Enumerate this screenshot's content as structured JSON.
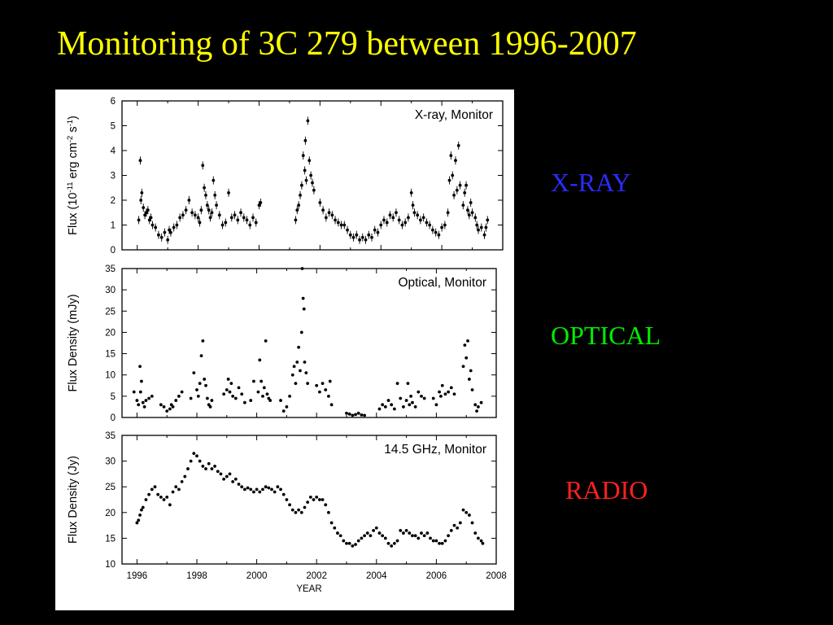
{
  "slide": {
    "title": "Monitoring of 3C 279 between 1996-2007",
    "labels": {
      "xray": {
        "text": "X-RAY",
        "color": "#2b2bff"
      },
      "optical": {
        "text": "OPTICAL",
        "color": "#00ee00"
      },
      "radio": {
        "text": "RADIO",
        "color": "#ff2020"
      }
    }
  },
  "chart_data": [
    {
      "type": "scatter",
      "title": "X-ray, Monitor",
      "ylabel": "Flux (10^-11 erg cm^-2 s^-1)",
      "xlabel": "",
      "xlim": [
        1995.5,
        2008
      ],
      "ylim": [
        0,
        6
      ],
      "yticks": [
        0,
        1,
        2,
        3,
        4,
        5,
        6
      ],
      "error_bars": true,
      "series": [
        {
          "x": [
            1996.05,
            1996.1,
            1996.12,
            1996.15,
            1996.2,
            1996.25,
            1996.3,
            1996.35,
            1996.4,
            1996.45,
            1996.5,
            1996.6,
            1996.7,
            1996.8,
            1996.9,
            1997.0,
            1997.05,
            1997.1,
            1997.2,
            1997.3,
            1997.4,
            1997.5,
            1997.6,
            1997.7,
            1997.8,
            1997.9,
            1998.0,
            1998.05,
            1998.1,
            1998.15,
            1998.2,
            1998.25,
            1998.3,
            1998.35,
            1998.4,
            1998.45,
            1998.5,
            1998.55,
            1998.6,
            1998.7,
            1998.8,
            1998.9,
            1999.0,
            1999.1,
            1999.2,
            1999.3,
            1999.4,
            1999.5,
            1999.6,
            1999.7,
            1999.8,
            1999.9,
            2000.0,
            2000.05,
            2001.2,
            2001.25,
            2001.3,
            2001.35,
            2001.4,
            2001.45,
            2001.5,
            2001.52,
            2001.55,
            2001.6,
            2001.65,
            2001.7,
            2001.75,
            2001.8,
            2002.0,
            2002.1,
            2002.2,
            2002.3,
            2002.4,
            2002.5,
            2002.6,
            2002.7,
            2002.8,
            2002.9,
            2003.0,
            2003.1,
            2003.2,
            2003.3,
            2003.4,
            2003.5,
            2003.6,
            2003.7,
            2003.8,
            2003.9,
            2004.0,
            2004.1,
            2004.2,
            2004.3,
            2004.4,
            2004.5,
            2004.6,
            2004.7,
            2004.8,
            2004.9,
            2005.0,
            2005.05,
            2005.1,
            2005.2,
            2005.3,
            2005.4,
            2005.5,
            2005.6,
            2005.7,
            2005.8,
            2005.9,
            2006.0,
            2006.1,
            2006.2,
            2006.25,
            2006.3,
            2006.35,
            2006.4,
            2006.45,
            2006.5,
            2006.55,
            2006.6,
            2006.7,
            2006.75,
            2006.8,
            2006.85,
            2006.9,
            2006.95,
            2007.0,
            2007.1,
            2007.15,
            2007.2,
            2007.3,
            2007.4,
            2007.45,
            2007.5
          ],
          "y": [
            1.2,
            3.6,
            2.0,
            2.3,
            1.7,
            1.4,
            1.5,
            1.6,
            1.2,
            1.3,
            1.0,
            0.9,
            0.6,
            0.5,
            0.7,
            0.4,
            0.8,
            0.7,
            0.9,
            1.0,
            1.3,
            1.4,
            1.6,
            2.0,
            1.5,
            1.4,
            1.3,
            1.1,
            1.6,
            3.4,
            2.5,
            2.2,
            1.8,
            1.6,
            1.3,
            1.5,
            2.8,
            2.2,
            1.8,
            1.4,
            1.0,
            1.1,
            2.3,
            1.3,
            1.4,
            1.2,
            1.5,
            1.3,
            1.2,
            1.0,
            1.3,
            1.1,
            1.8,
            1.9,
            1.2,
            1.6,
            1.8,
            2.2,
            2.6,
            3.8,
            3.2,
            4.4,
            2.8,
            5.2,
            3.6,
            3.0,
            2.7,
            2.4,
            1.9,
            1.6,
            1.3,
            1.5,
            1.4,
            1.2,
            1.1,
            1.0,
            1.0,
            0.8,
            0.6,
            0.5,
            0.6,
            0.4,
            0.5,
            0.4,
            0.6,
            0.5,
            0.8,
            0.7,
            1.0,
            1.2,
            1.1,
            1.4,
            1.3,
            1.5,
            1.2,
            1.0,
            1.1,
            1.3,
            2.3,
            1.8,
            1.5,
            1.4,
            1.2,
            1.3,
            1.1,
            1.0,
            0.8,
            0.7,
            0.6,
            0.9,
            1.0,
            1.5,
            2.8,
            3.8,
            3.0,
            2.2,
            3.6,
            2.4,
            4.2,
            2.6,
            1.8,
            2.3,
            2.6,
            1.6,
            1.4,
            1.9,
            1.5,
            1.3,
            1.0,
            0.8,
            0.9,
            0.6,
            0.9,
            1.2
          ]
        }
      ]
    },
    {
      "type": "scatter",
      "title": "Optical, Monitor",
      "ylabel": "Flux Density (mJy)",
      "xlabel": "",
      "xlim": [
        1995.5,
        2008
      ],
      "ylim": [
        0,
        35
      ],
      "yticks": [
        0,
        5,
        10,
        15,
        20,
        25,
        30,
        35
      ],
      "series": [
        {
          "x": [
            1995.9,
            1996.0,
            1996.05,
            1996.1,
            1996.12,
            1996.15,
            1996.2,
            1996.25,
            1996.3,
            1996.4,
            1996.5,
            1996.8,
            1996.9,
            1997.0,
            1997.1,
            1997.15,
            1997.2,
            1997.3,
            1997.4,
            1997.5,
            1997.8,
            1997.9,
            1998.0,
            1998.05,
            1998.1,
            1998.15,
            1998.2,
            1998.25,
            1998.3,
            1998.35,
            1998.4,
            1998.45,
            1998.5,
            1998.9,
            1999.0,
            1999.05,
            1999.1,
            1999.15,
            1999.2,
            1999.3,
            1999.4,
            1999.5,
            1999.6,
            1999.8,
            1999.9,
            2000.05,
            2000.1,
            2000.15,
            2000.2,
            2000.25,
            2000.3,
            2000.35,
            2000.4,
            2000.45,
            2000.8,
            2000.9,
            2001.0,
            2001.1,
            2001.2,
            2001.25,
            2001.3,
            2001.35,
            2001.4,
            2001.45,
            2001.5,
            2001.52,
            2001.55,
            2001.58,
            2001.6,
            2001.65,
            2001.7,
            2002.0,
            2002.1,
            2002.2,
            2002.3,
            2002.4,
            2002.45,
            2002.5,
            2003.0,
            2003.1,
            2003.2,
            2003.3,
            2003.4,
            2003.5,
            2003.6,
            2004.1,
            2004.2,
            2004.3,
            2004.4,
            2004.5,
            2004.6,
            2004.7,
            2004.8,
            2004.9,
            2005.0,
            2005.05,
            2005.1,
            2005.15,
            2005.2,
            2005.3,
            2005.4,
            2005.5,
            2005.6,
            2005.9,
            2006.0,
            2006.1,
            2006.15,
            2006.2,
            2006.3,
            2006.4,
            2006.5,
            2006.6,
            2006.9,
            2006.95,
            2007.0,
            2007.05,
            2007.1,
            2007.15,
            2007.2,
            2007.3,
            2007.35,
            2007.4,
            2007.5
          ],
          "y": [
            6.0,
            4.0,
            3.0,
            12.0,
            6.0,
            8.5,
            3.5,
            2.5,
            4.0,
            4.5,
            5.0,
            3.0,
            2.5,
            1.5,
            2.0,
            3.0,
            2.5,
            4.0,
            5.0,
            6.0,
            4.5,
            10.5,
            6.5,
            5.0,
            8.0,
            14.5,
            18.0,
            9.0,
            7.5,
            4.5,
            3.0,
            2.5,
            4.0,
            5.5,
            6.5,
            9.0,
            6.0,
            8.0,
            5.0,
            4.5,
            7.0,
            5.5,
            3.5,
            4.0,
            8.5,
            6.0,
            13.5,
            8.5,
            5.0,
            7.0,
            18.0,
            5.5,
            4.5,
            4.0,
            4.0,
            1.5,
            2.5,
            5.0,
            10.0,
            12.0,
            8.0,
            13.0,
            16.5,
            11.0,
            20.0,
            35.0,
            28.0,
            25.5,
            13.0,
            10.5,
            8.0,
            7.5,
            6.0,
            8.0,
            6.5,
            5.0,
            8.5,
            3.0,
            1.0,
            0.8,
            0.5,
            0.7,
            1.0,
            0.6,
            0.5,
            2.0,
            3.0,
            2.5,
            4.0,
            3.0,
            2.0,
            8.0,
            4.5,
            2.5,
            4.0,
            8.0,
            3.0,
            5.0,
            3.5,
            2.5,
            6.0,
            5.0,
            4.5,
            4.5,
            3.0,
            6.0,
            5.0,
            7.5,
            5.5,
            6.0,
            7.0,
            5.5,
            12.0,
            17.0,
            14.0,
            18.0,
            9.0,
            11.0,
            6.5,
            3.0,
            1.5,
            2.5,
            3.5
          ]
        }
      ]
    },
    {
      "type": "scatter",
      "title": "14.5 GHz, Monitor",
      "ylabel": "Flux Density (Jy)",
      "xlabel": "YEAR",
      "xlim": [
        1995.5,
        2008
      ],
      "ylim": [
        10,
        35
      ],
      "yticks": [
        10,
        15,
        20,
        25,
        30,
        35
      ],
      "xticks": [
        1996,
        1998,
        2000,
        2002,
        2004,
        2006,
        2008
      ],
      "series": [
        {
          "x": [
            1996.0,
            1996.05,
            1996.1,
            1996.15,
            1996.2,
            1996.3,
            1996.4,
            1996.5,
            1996.6,
            1996.7,
            1996.8,
            1996.9,
            1997.0,
            1997.1,
            1997.2,
            1997.3,
            1997.4,
            1997.5,
            1997.6,
            1997.7,
            1997.8,
            1997.9,
            1998.0,
            1998.1,
            1998.2,
            1998.3,
            1998.4,
            1998.5,
            1998.6,
            1998.7,
            1998.8,
            1998.9,
            1999.0,
            1999.1,
            1999.2,
            1999.3,
            1999.4,
            1999.5,
            1999.6,
            1999.7,
            1999.8,
            1999.9,
            2000.0,
            2000.1,
            2000.2,
            2000.3,
            2000.4,
            2000.5,
            2000.6,
            2000.7,
            2000.8,
            2000.9,
            2001.0,
            2001.1,
            2001.2,
            2001.3,
            2001.4,
            2001.5,
            2001.6,
            2001.7,
            2001.8,
            2001.9,
            2002.0,
            2002.1,
            2002.2,
            2002.3,
            2002.4,
            2002.5,
            2002.6,
            2002.7,
            2002.8,
            2002.9,
            2003.0,
            2003.1,
            2003.2,
            2003.3,
            2003.4,
            2003.5,
            2003.6,
            2003.7,
            2003.8,
            2003.9,
            2004.0,
            2004.1,
            2004.2,
            2004.3,
            2004.4,
            2004.5,
            2004.6,
            2004.7,
            2004.8,
            2004.9,
            2005.0,
            2005.1,
            2005.2,
            2005.3,
            2005.4,
            2005.5,
            2005.6,
            2005.7,
            2005.8,
            2005.9,
            2006.0,
            2006.1,
            2006.2,
            2006.3,
            2006.4,
            2006.5,
            2006.6,
            2006.7,
            2006.8,
            2006.9,
            2007.0,
            2007.1,
            2007.2,
            2007.3,
            2007.4,
            2007.5,
            2007.55
          ],
          "y": [
            18.0,
            18.5,
            19.5,
            20.5,
            21.0,
            22.5,
            23.5,
            24.5,
            25.0,
            23.5,
            23.0,
            22.5,
            23.0,
            21.5,
            24.0,
            25.0,
            24.5,
            26.0,
            27.0,
            28.5,
            30.0,
            31.5,
            31.0,
            30.0,
            29.0,
            28.5,
            29.5,
            28.5,
            29.0,
            28.0,
            27.5,
            26.5,
            27.0,
            27.5,
            26.0,
            26.5,
            25.5,
            25.0,
            24.5,
            24.8,
            24.5,
            24.0,
            24.5,
            24.0,
            24.5,
            25.0,
            24.8,
            24.5,
            24.0,
            25.0,
            24.5,
            23.5,
            22.5,
            21.5,
            20.5,
            20.0,
            20.5,
            20.0,
            21.0,
            22.0,
            23.0,
            22.5,
            23.0,
            22.5,
            22.5,
            21.5,
            20.0,
            18.0,
            17.0,
            16.0,
            15.5,
            14.5,
            14.0,
            14.0,
            13.5,
            13.8,
            14.5,
            15.0,
            15.5,
            16.0,
            15.5,
            16.5,
            17.0,
            16.0,
            15.5,
            15.0,
            14.0,
            13.5,
            14.0,
            14.5,
            16.5,
            16.0,
            16.5,
            16.0,
            15.5,
            15.5,
            15.0,
            16.0,
            15.5,
            16.0,
            15.0,
            14.5,
            14.5,
            14.0,
            14.0,
            14.5,
            15.5,
            16.5,
            17.5,
            17.0,
            18.0,
            20.5,
            20.0,
            19.5,
            18.0,
            16.0,
            15.0,
            14.5,
            14.0
          ]
        }
      ]
    }
  ]
}
